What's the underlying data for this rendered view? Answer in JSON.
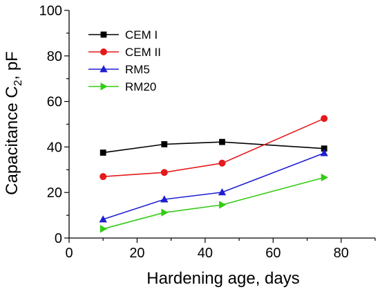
{
  "chart_data": {
    "type": "line",
    "title": "",
    "xlabel": "Hardening age, days",
    "ylabel_main": "Capacitance C",
    "ylabel_sub": "2",
    "ylabel_tail": ", pF",
    "xlim": [
      0,
      90
    ],
    "ylim": [
      0,
      100
    ],
    "x_ticks": [
      0,
      20,
      40,
      60,
      80
    ],
    "y_ticks": [
      0,
      20,
      40,
      60,
      80,
      100
    ],
    "grid": false,
    "legend_position": "top-left",
    "series": [
      {
        "name": "CEM I",
        "color": "#000000",
        "marker": "square",
        "x": [
          10,
          28,
          45,
          75
        ],
        "y": [
          37.5,
          41.2,
          42.2,
          39.3
        ]
      },
      {
        "name": "CEM II",
        "color": "#e41a1c",
        "marker": "circle",
        "x": [
          10,
          28,
          45,
          75
        ],
        "y": [
          27.0,
          28.8,
          32.9,
          52.5
        ]
      },
      {
        "name": "RM5",
        "color": "#1f1fd1",
        "marker": "triangle-up",
        "x": [
          10,
          28,
          45,
          75
        ],
        "y": [
          8.2,
          17.0,
          20.1,
          37.3
        ]
      },
      {
        "name": "RM20",
        "color": "#33cc14",
        "marker": "triangle-right",
        "x": [
          10,
          28,
          45,
          75
        ],
        "y": [
          4.0,
          11.2,
          14.6,
          26.6
        ]
      }
    ]
  }
}
